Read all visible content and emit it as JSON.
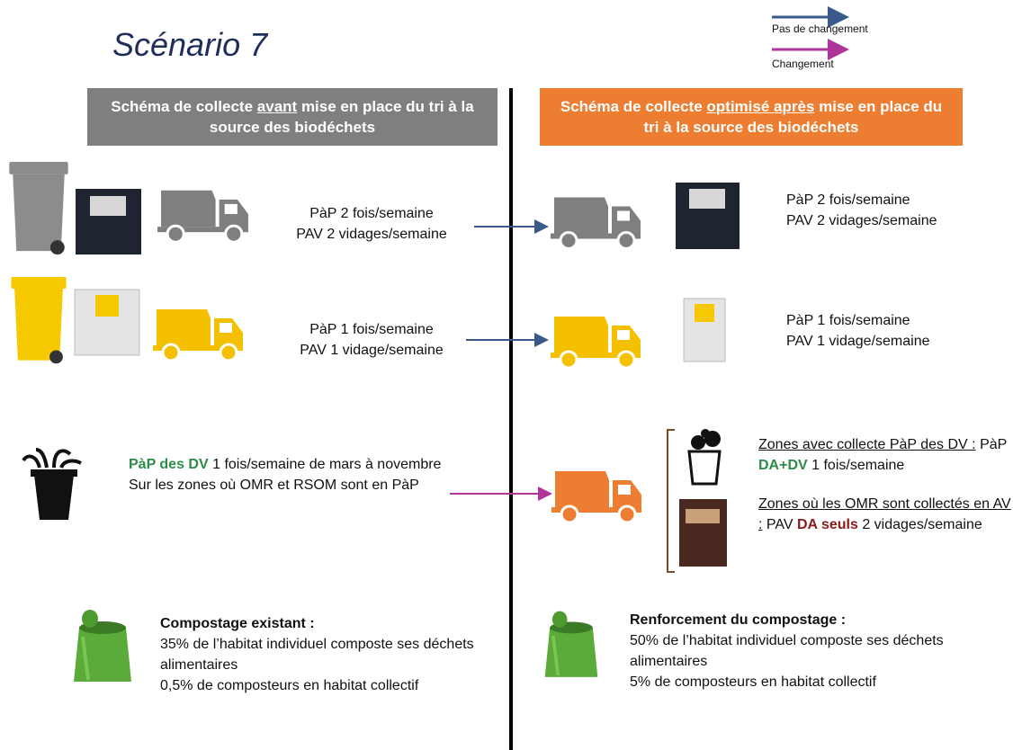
{
  "title": "Scénario 7",
  "legend": [
    "Pas de changement",
    "Changement"
  ],
  "before": {
    "header": [
      "Schéma de collecte",
      "avant",
      "mise en place du tri à la source des biodéchets"
    ],
    "row1": [
      "PàP 2 fois/semaine",
      "PAV 2 vidages/semaine"
    ],
    "row2": [
      "PàP 1 fois/semaine",
      "PAV 1 vidage/semaine"
    ],
    "row3": {
      "highlight": "PàP des DV",
      "text": "1 fois/semaine de mars à novembre",
      "zones": "Sur les zones où OMR et RSOM sont en PàP"
    },
    "row4": {
      "title": "Compostage existant :",
      "lines": [
        "35% de l’habitat individuel composte ses déchets alimentaires",
        "0,5% de composteurs en habitat collectif"
      ]
    }
  },
  "after": {
    "header": [
      "Schéma de collecte",
      "optimisé après",
      "mise en place du tri à la source des biodéchets"
    ],
    "row1": [
      "PàP 2 fois/semaine",
      "PAV 2 vidages/semaine"
    ],
    "row2": [
      "PàP 1 fois/semaine",
      "PAV 1 vidage/semaine"
    ],
    "row3": {
      "zone1": {
        "title": "Zones avec collecte PàP des DV :",
        "prefix": "PàP",
        "highlight": "DA+DV",
        "rest": "1 fois/semaine"
      },
      "zone2": {
        "title": "Zones où les OMR sont collectés en AV :",
        "prefix": "PAV",
        "highlight": "DA seuls",
        "rest": "2 vidages/semaine"
      }
    },
    "row4": {
      "title": "Renforcement du compostage :",
      "lines": [
        "50% de l’habitat individuel composte ses déchets alimentaires",
        "5% de composteurs en habitat collectif"
      ]
    }
  }
}
